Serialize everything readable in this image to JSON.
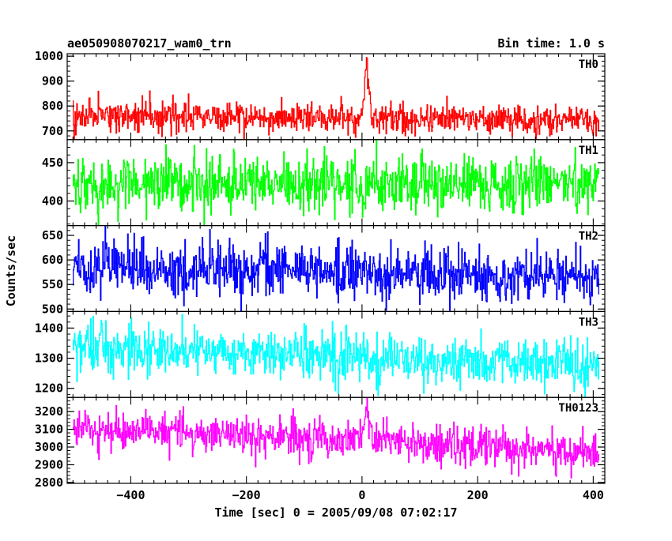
{
  "chart_data": {
    "type": "line",
    "title": "ae050908070217_wam0_trn",
    "bin_time": "Bin time: 1.0 s",
    "xlabel": "Time [sec] 0 = 2005/09/08 07:02:17",
    "ylabel": "Counts/sec",
    "xlim": [
      -510,
      420
    ],
    "xticks": [
      -400,
      -200,
      0,
      200,
      400
    ],
    "xtick_labels": [
      "−400",
      "−200",
      "0",
      "200",
      "400"
    ],
    "x_start": -500,
    "x_end": 410,
    "x_step": 1,
    "grid": false,
    "legend": "none",
    "panels": [
      {
        "name": "TH0",
        "color": "#ff0000",
        "ylim": [
          665,
          1010
        ],
        "yticks": [
          700,
          800,
          900,
          1000
        ],
        "baseline": [
          [
            -500,
            760
          ],
          [
            0,
            748
          ],
          [
            410,
            740
          ]
        ],
        "noise": 30,
        "peak": {
          "center": 8,
          "width": 4,
          "amplitude": 220
        }
      },
      {
        "name": "TH1",
        "color": "#00ff00",
        "ylim": [
          368,
          480
        ],
        "yticks": [
          400,
          450
        ],
        "baseline": [
          [
            -500,
            422
          ],
          [
            410,
            421
          ]
        ],
        "noise": 19
      },
      {
        "name": "TH2",
        "color": "#0000ff",
        "ylim": [
          495,
          670
        ],
        "yticks": [
          500,
          550,
          600,
          650
        ],
        "baseline": [
          [
            -500,
            588
          ],
          [
            0,
            575
          ],
          [
            410,
            568
          ]
        ],
        "noise": 27
      },
      {
        "name": "TH3",
        "color": "#00ffff",
        "ylim": [
          1170,
          1455
        ],
        "yticks": [
          1200,
          1300,
          1400
        ],
        "baseline": [
          [
            -500,
            1340
          ],
          [
            0,
            1300
          ],
          [
            410,
            1282
          ]
        ],
        "noise": 40
      },
      {
        "name": "TH0123",
        "color": "#ff00ff",
        "ylim": [
          2795,
          3280
        ],
        "yticks": [
          2800,
          2900,
          3000,
          3100,
          3200
        ],
        "baseline": [
          [
            -500,
            3110
          ],
          [
            0,
            3040
          ],
          [
            410,
            2975
          ]
        ],
        "noise": 55,
        "peak": {
          "center": 8,
          "width": 5,
          "amplitude": 150
        }
      }
    ]
  }
}
